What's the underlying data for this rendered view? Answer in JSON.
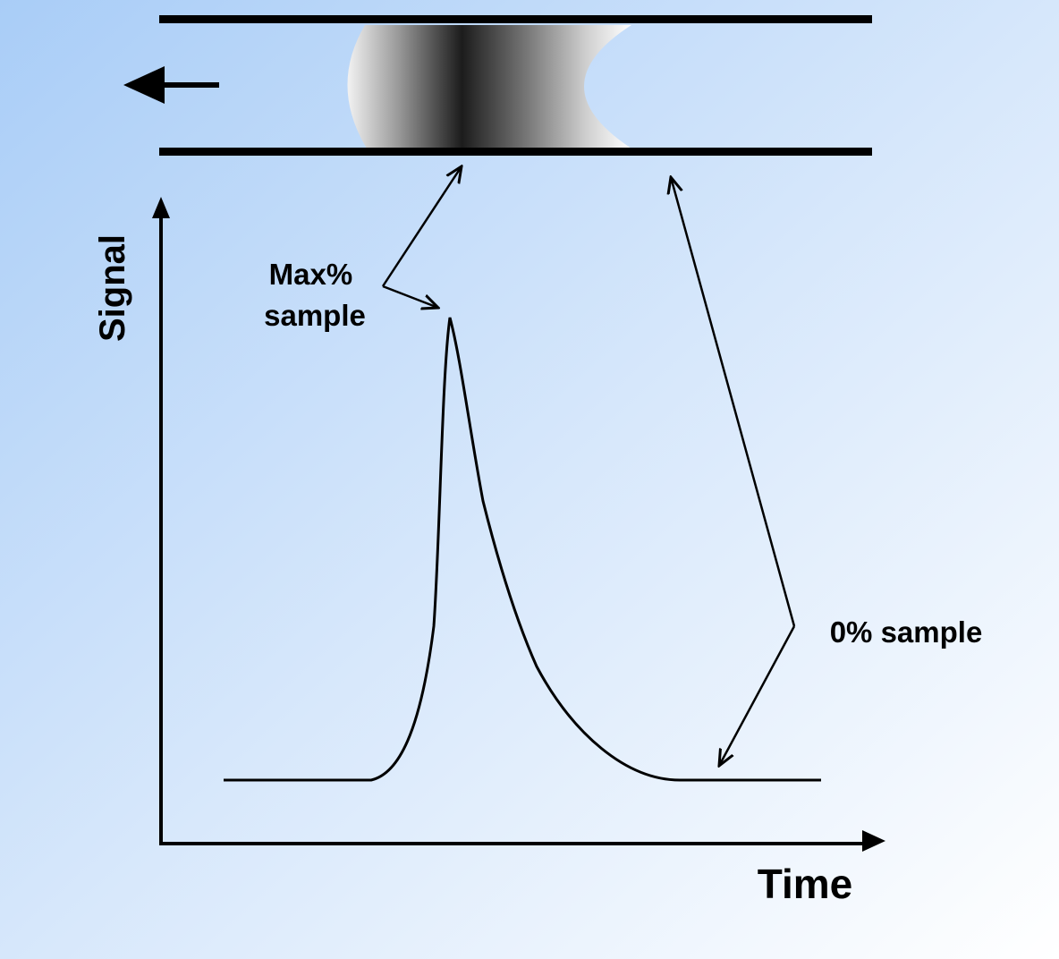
{
  "labels": {
    "max_sample": [
      "Max%",
      "sample"
    ],
    "zero_sample": "0% sample",
    "y_axis": "Signal",
    "x_axis": "Time"
  }
}
